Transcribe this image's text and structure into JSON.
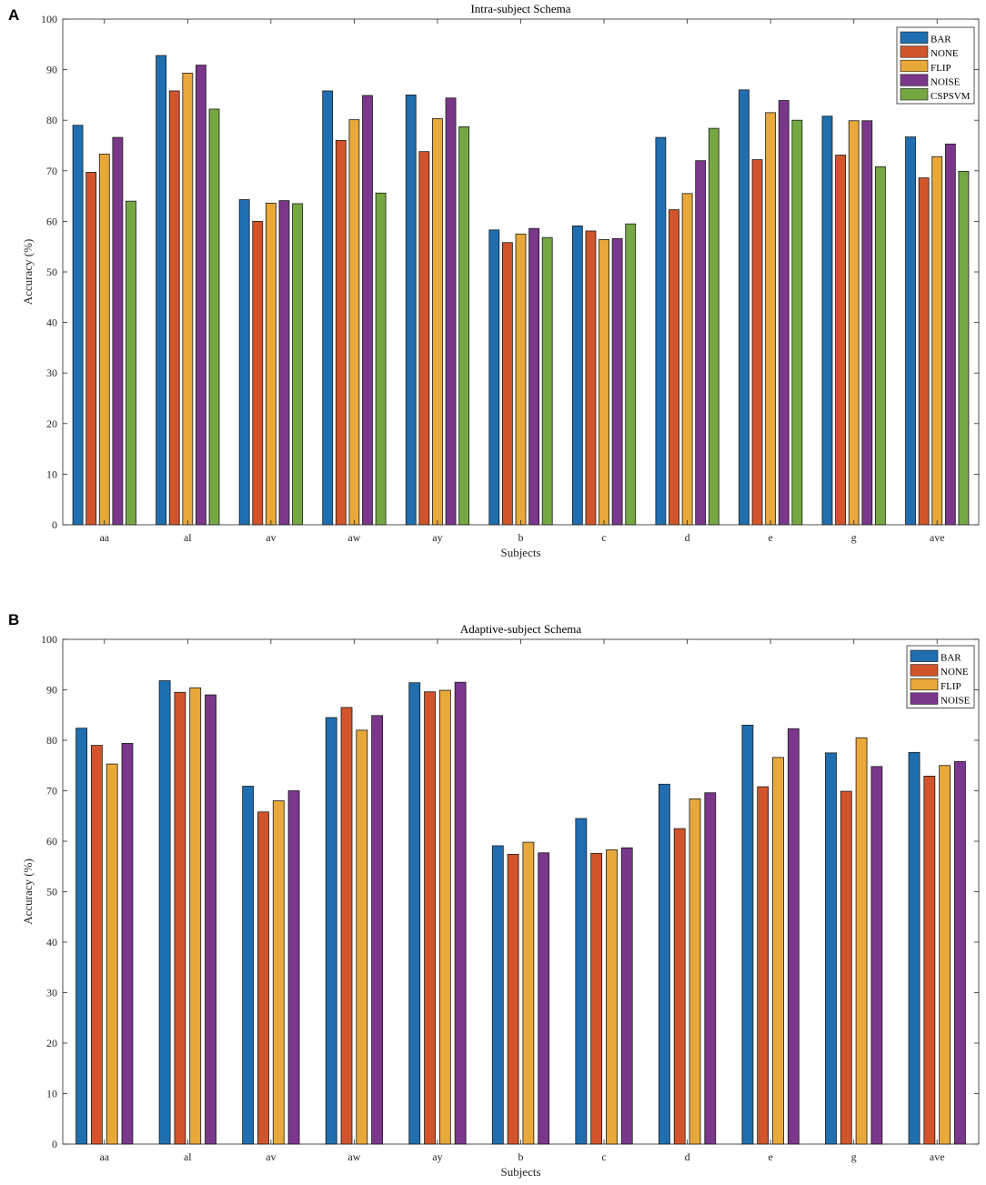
{
  "figure": {
    "panel_labels": [
      "A",
      "B"
    ]
  },
  "chart_data": [
    {
      "type": "bar",
      "title": "Intra-subject Schema",
      "xlabel": "Subjects",
      "ylabel": "Accuracy (%)",
      "ylim": [
        0,
        100
      ],
      "yticks": [
        0,
        10,
        20,
        30,
        40,
        50,
        60,
        70,
        80,
        90,
        100
      ],
      "grid": false,
      "legend_position": "top-right",
      "categories": [
        "aa",
        "al",
        "av",
        "aw",
        "ay",
        "b",
        "c",
        "d",
        "e",
        "g",
        "ave"
      ],
      "series": [
        {
          "name": "BAR",
          "color": "#1f6fb0",
          "values": [
            79.0,
            92.8,
            64.3,
            85.8,
            85.0,
            58.3,
            59.1,
            76.6,
            86.0,
            80.8,
            76.7
          ]
        },
        {
          "name": "NONE",
          "color": "#d2542a",
          "values": [
            69.7,
            85.8,
            60.0,
            76.0,
            73.8,
            55.8,
            58.1,
            62.3,
            72.2,
            73.1,
            68.6
          ]
        },
        {
          "name": "FLIP",
          "color": "#e8a83a",
          "values": [
            73.3,
            89.3,
            63.6,
            80.1,
            80.3,
            57.5,
            56.4,
            65.5,
            81.5,
            79.9,
            72.8
          ]
        },
        {
          "name": "NOISE",
          "color": "#7a378b",
          "values": [
            76.6,
            90.9,
            64.1,
            84.9,
            84.4,
            58.6,
            56.6,
            72.0,
            83.9,
            79.9,
            75.3
          ]
        },
        {
          "name": "CSPSVM",
          "color": "#75a843",
          "values": [
            64.0,
            82.2,
            63.5,
            65.6,
            78.7,
            56.8,
            59.5,
            78.4,
            80.0,
            70.8,
            69.9
          ]
        }
      ]
    },
    {
      "type": "bar",
      "title": "Adaptive-subject Schema",
      "xlabel": "Subjects",
      "ylabel": "Accuracy (%)",
      "ylim": [
        0,
        100
      ],
      "yticks": [
        0,
        10,
        20,
        30,
        40,
        50,
        60,
        70,
        80,
        90,
        100
      ],
      "grid": false,
      "legend_position": "top-right",
      "categories": [
        "aa",
        "al",
        "av",
        "aw",
        "ay",
        "b",
        "c",
        "d",
        "e",
        "g",
        "ave"
      ],
      "series": [
        {
          "name": "BAR",
          "color": "#1f6fb0",
          "values": [
            82.4,
            91.8,
            70.9,
            84.5,
            91.4,
            59.1,
            64.5,
            71.3,
            83.0,
            77.5,
            77.6
          ]
        },
        {
          "name": "NONE",
          "color": "#d2542a",
          "values": [
            79.0,
            89.5,
            65.8,
            86.5,
            89.6,
            57.4,
            57.6,
            62.5,
            70.8,
            69.9,
            72.9
          ]
        },
        {
          "name": "FLIP",
          "color": "#e8a83a",
          "values": [
            75.3,
            90.4,
            68.0,
            82.0,
            89.9,
            59.8,
            58.3,
            68.4,
            76.6,
            80.5,
            75.0
          ]
        },
        {
          "name": "NOISE",
          "color": "#7a378b",
          "values": [
            79.4,
            89.0,
            70.0,
            84.9,
            91.5,
            57.7,
            58.7,
            69.6,
            82.3,
            74.8,
            75.8
          ]
        }
      ]
    }
  ]
}
